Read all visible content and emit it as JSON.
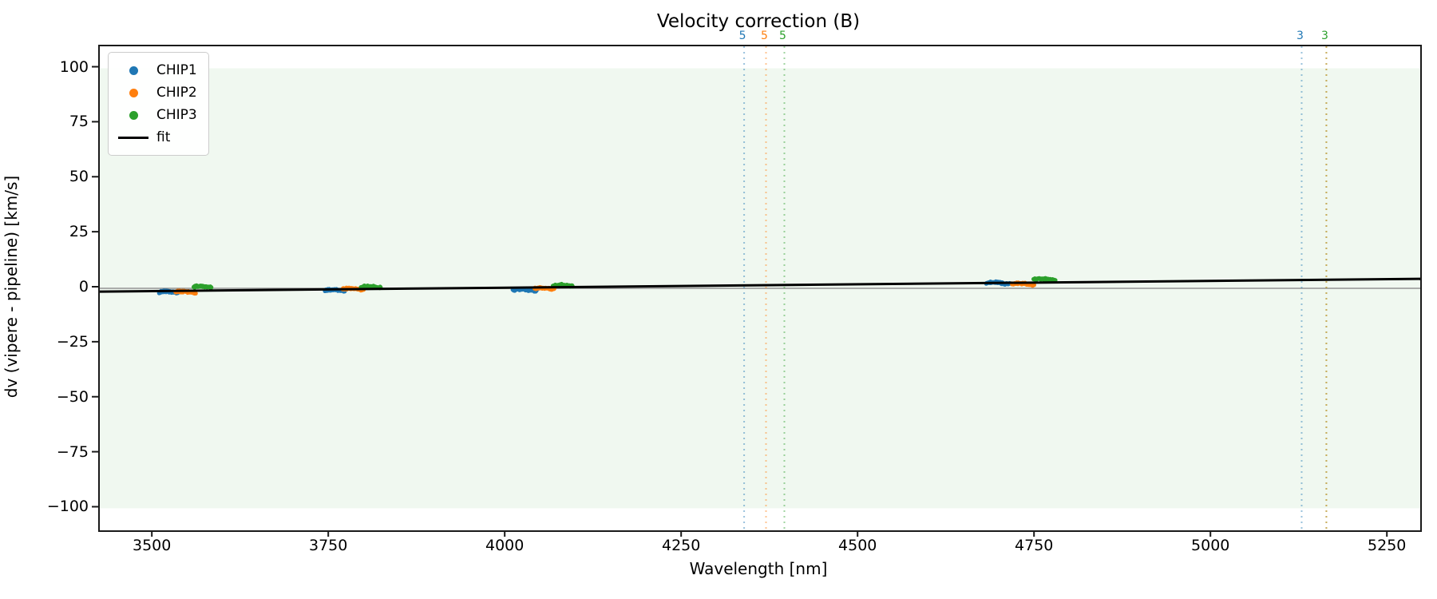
{
  "title": "Velocity correction (B)",
  "chart_data": {
    "type": "scatter",
    "title": "Velocity correction (B)",
    "xlabel": "Wavelength [nm]",
    "ylabel": "dv (vipere - pipeline) [km/s]",
    "xlim": [
      3424,
      5295
    ],
    "ylim": [
      -110,
      110
    ],
    "xticks": [
      3500,
      3750,
      4000,
      4250,
      4500,
      4750,
      5000,
      5250
    ],
    "yticks": [
      100,
      75,
      50,
      25,
      0,
      -25,
      -50,
      -75,
      -100
    ],
    "grid": false,
    "legend_position": "upper left",
    "legend_entries": [
      "CHIP1",
      "CHIP2",
      "CHIP3",
      "fit"
    ],
    "shaded_band": {
      "y_min": -100,
      "y_max": 100,
      "color": "rgba(44,160,44,0.07)"
    },
    "zero_line": {
      "y": 0,
      "color": "#7f7f7f"
    },
    "series": [
      {
        "name": "CHIP1",
        "color": "#1f77b4",
        "clusters": [
          {
            "x_min": 3508,
            "x_max": 3536,
            "y": -1.8
          },
          {
            "x_min": 3743,
            "x_max": 3771,
            "y": -1.0
          },
          {
            "x_min": 4009,
            "x_max": 4043,
            "y": -0.8
          },
          {
            "x_min": 4680,
            "x_max": 4714,
            "y": 2.4
          }
        ]
      },
      {
        "name": "CHIP2",
        "color": "#ff7f0e",
        "clusters": [
          {
            "x_min": 3531,
            "x_max": 3560,
            "y": -1.7
          },
          {
            "x_min": 3768,
            "x_max": 3798,
            "y": -0.4
          },
          {
            "x_min": 4040,
            "x_max": 4068,
            "y": -0.2
          },
          {
            "x_min": 4716,
            "x_max": 4748,
            "y": 1.9
          }
        ]
      },
      {
        "name": "CHIP3",
        "color": "#2ca02c",
        "clusters": [
          {
            "x_min": 3557,
            "x_max": 3582,
            "y": 0.6
          },
          {
            "x_min": 3794,
            "x_max": 3822,
            "y": 0.5
          },
          {
            "x_min": 4066,
            "x_max": 4094,
            "y": 1.2
          },
          {
            "x_min": 4747,
            "x_max": 4778,
            "y": 4.0
          }
        ]
      }
    ],
    "fit_line": {
      "name": "fit",
      "color": "#000000",
      "x": [
        3424,
        5295
      ],
      "y": [
        -1.5,
        4.3
      ]
    },
    "vlines": [
      {
        "x": 4337,
        "label": "5",
        "color": "#1f77b4"
      },
      {
        "x": 4368,
        "label": "5",
        "color": "#ff7f0e"
      },
      {
        "x": 4394,
        "label": "5",
        "color": "#2ca02c"
      },
      {
        "x": 5127,
        "label": "3",
        "color": "#1f77b4"
      },
      {
        "x": 5162,
        "label": "3",
        "color": "#2ca02c"
      },
      {
        "x": 5162,
        "label_color": "#ff7f0e",
        "color": "#ff7f0e"
      }
    ]
  }
}
